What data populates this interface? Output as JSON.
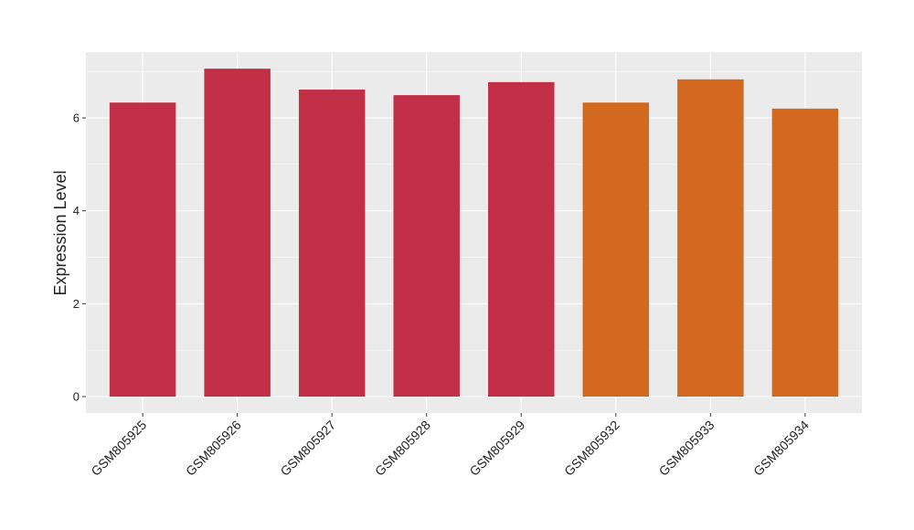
{
  "chart_data": {
    "type": "bar",
    "y_label": "Expression Level",
    "categories": [
      "GSM805925",
      "GSM805926",
      "GSM805927",
      "GSM805928",
      "GSM805929",
      "GSM805932",
      "GSM805933",
      "GSM805934"
    ],
    "values": [
      6.33,
      7.06,
      6.61,
      6.49,
      6.77,
      6.33,
      6.83,
      6.2
    ],
    "colors": [
      "#c13047",
      "#c13047",
      "#c13047",
      "#c13047",
      "#c13047",
      "#d2691e",
      "#d2691e",
      "#d2691e"
    ],
    "ylim": [
      -0.354,
      7.417
    ],
    "yticks": [
      0,
      2,
      4,
      6
    ],
    "grid": true,
    "minor_grid": true
  }
}
